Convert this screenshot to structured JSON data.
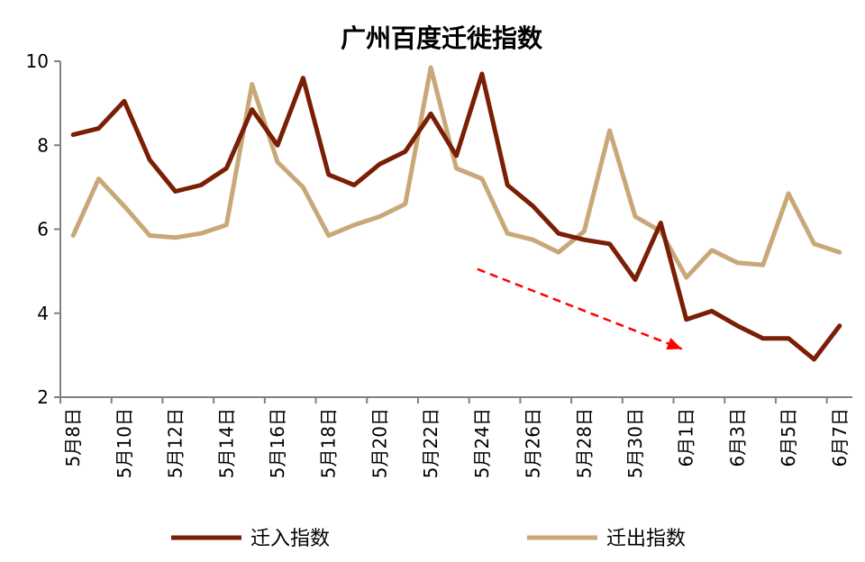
{
  "chart_data": {
    "type": "line",
    "title": "广州百度迁徙指数",
    "xlabel": "",
    "ylabel": "",
    "ylim": [
      2,
      10
    ],
    "yticks": [
      2,
      4,
      6,
      8,
      10
    ],
    "grid": false,
    "legend_position": "bottom",
    "x": [
      "5月8日",
      "5月9日",
      "5月10日",
      "5月11日",
      "5月12日",
      "5月13日",
      "5月14日",
      "5月15日",
      "5月16日",
      "5月17日",
      "5月18日",
      "5月19日",
      "5月20日",
      "5月21日",
      "5月22日",
      "5月23日",
      "5月24日",
      "5月25日",
      "5月26日",
      "5月27日",
      "5月28日",
      "5月29日",
      "5月30日",
      "5月31日",
      "6月1日",
      "6月2日",
      "6月3日",
      "6月4日",
      "6月5日",
      "6月6日",
      "6月7日"
    ],
    "xtick_labels": [
      "5月8日",
      "5月10日",
      "5月12日",
      "5月14日",
      "5月16日",
      "5月18日",
      "5月20日",
      "5月22日",
      "5月24日",
      "5月26日",
      "5月28日",
      "5月30日",
      "6月1日",
      "6月3日",
      "6月5日",
      "6月7日"
    ],
    "series": [
      {
        "name": "迁入指数",
        "color": "#7a1e05",
        "values": [
          8.25,
          8.4,
          9.05,
          7.65,
          6.9,
          7.05,
          7.45,
          8.85,
          8.0,
          9.6,
          7.3,
          7.05,
          7.55,
          7.85,
          8.75,
          7.75,
          9.7,
          7.05,
          6.55,
          5.9,
          5.75,
          5.65,
          4.8,
          6.15,
          3.85,
          4.05,
          3.7,
          3.4,
          3.4,
          2.9,
          3.7
        ]
      },
      {
        "name": "迁出指数",
        "color": "#c8a878",
        "values": [
          5.85,
          7.2,
          6.55,
          5.85,
          5.8,
          5.9,
          6.1,
          9.45,
          7.6,
          7.0,
          5.85,
          6.1,
          6.3,
          6.6,
          9.85,
          7.45,
          7.2,
          5.9,
          5.75,
          5.45,
          5.95,
          8.35,
          6.3,
          5.95,
          4.85,
          5.5,
          5.2,
          5.15,
          6.85,
          5.65,
          5.45
        ]
      }
    ],
    "annotation": {
      "type": "dashed-arrow",
      "color": "#ff0000",
      "from": {
        "x": "5月24日",
        "y": 5.05
      },
      "to": {
        "x": "6月1日",
        "y": 3.15
      }
    }
  }
}
